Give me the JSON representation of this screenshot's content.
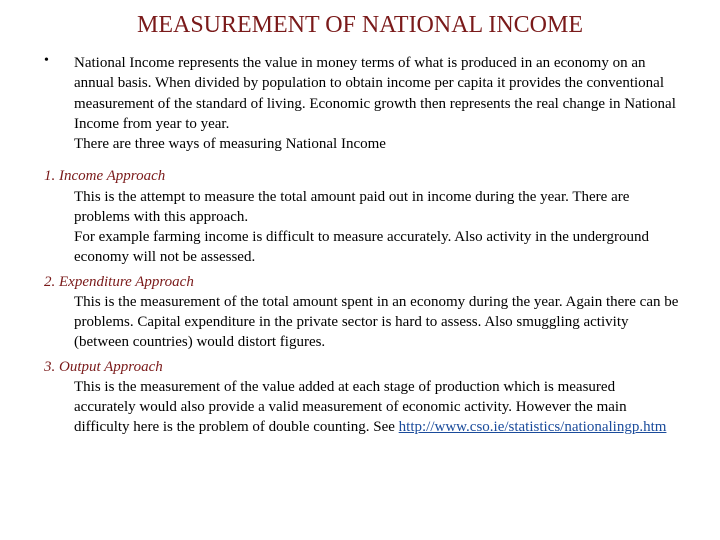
{
  "title": "MEASUREMENT OF NATIONAL INCOME",
  "intro": {
    "bullet": "•",
    "paragraph1": "National Income represents the value in money terms of what is produced in an economy on an annual basis. When divided by population to obtain income per capita it provides  the conventional measurement of the standard of living. Economic growth then represents the real change in National Income from year to year.",
    "paragraph2": "There are three ways of measuring National Income"
  },
  "approaches": [
    {
      "heading": "1. Income Approach",
      "body": "This is the attempt to measure the total amount paid out in income during the year. There are problems with this approach.\nFor example farming income is difficult to measure accurately. Also activity in the underground economy will not be assessed."
    },
    {
      "heading": "2. Expenditure Approach",
      "body": "This is the measurement of the total amount spent in an economy during the year. Again there can be problems. Capital expenditure in the private sector is hard to assess. Also smuggling activity (between countries) would distort figures."
    },
    {
      "heading": "3. Output Approach",
      "body": "This is the measurement of the value added at each stage of production which is measured accurately would also provide a valid measurement of economic activity. However the main difficulty here is the problem of double counting.  ",
      "see": "See ",
      "link": "http://www.cso.ie/statistics/nationalingp.htm"
    }
  ],
  "colors": {
    "title": "#7a1a1a",
    "heading": "#7a1a1a",
    "body": "#000000",
    "link": "#1a4b9b",
    "background": "#ffffff"
  }
}
